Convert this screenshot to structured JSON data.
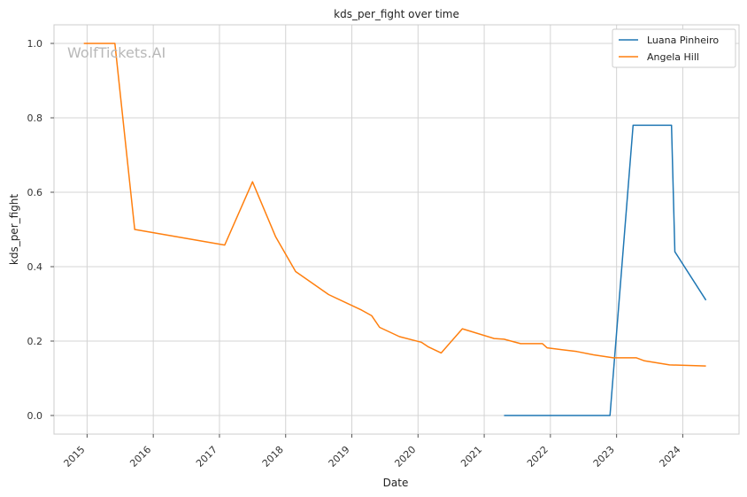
{
  "chart_data": {
    "type": "line",
    "title": "kds_per_fight over time",
    "xlabel": "Date",
    "ylabel": "kds_per_fight",
    "watermark": "WolfTickets.AI",
    "grid": true,
    "legend_position": "top-right",
    "xlim": [
      2014.5,
      2024.85
    ],
    "ylim": [
      -0.05,
      1.05
    ],
    "x_ticks": [
      {
        "value": 2015,
        "label": "2015"
      },
      {
        "value": 2016,
        "label": "2016"
      },
      {
        "value": 2017,
        "label": "2017"
      },
      {
        "value": 2018,
        "label": "2018"
      },
      {
        "value": 2019,
        "label": "2019"
      },
      {
        "value": 2020,
        "label": "2020"
      },
      {
        "value": 2021,
        "label": "2021"
      },
      {
        "value": 2022,
        "label": "2022"
      },
      {
        "value": 2023,
        "label": "2023"
      },
      {
        "value": 2024,
        "label": "2024"
      }
    ],
    "y_ticks": [
      {
        "value": 0.0,
        "label": "0.0"
      },
      {
        "value": 0.2,
        "label": "0.2"
      },
      {
        "value": 0.4,
        "label": "0.4"
      },
      {
        "value": 0.6,
        "label": "0.6"
      },
      {
        "value": 0.8,
        "label": "0.8"
      },
      {
        "value": 1.0,
        "label": "1.0"
      }
    ],
    "series": [
      {
        "name": "Luana Pinheiro",
        "color": "#1f77b4",
        "x": [
          2021.3,
          2022.9,
          2023.25,
          2023.83,
          2023.88,
          2024.35
        ],
        "y": [
          0.0,
          0.0,
          0.78,
          0.78,
          0.44,
          0.31
        ]
      },
      {
        "name": "Angela Hill",
        "color": "#ff7f0e",
        "x": [
          2014.95,
          2015.42,
          2015.72,
          2017.08,
          2017.5,
          2017.85,
          2018.15,
          2018.65,
          2019.15,
          2019.3,
          2019.42,
          2019.72,
          2020.05,
          2020.15,
          2020.35,
          2020.67,
          2021.15,
          2021.3,
          2021.55,
          2021.88,
          2021.95,
          2022.4,
          2022.65,
          2022.95,
          2023.3,
          2023.42,
          2023.8,
          2024.35
        ],
        "y": [
          1.0,
          1.0,
          0.5,
          0.458,
          0.628,
          0.48,
          0.387,
          0.325,
          0.283,
          0.268,
          0.237,
          0.212,
          0.197,
          0.185,
          0.168,
          0.233,
          0.207,
          0.205,
          0.193,
          0.193,
          0.182,
          0.172,
          0.163,
          0.155,
          0.155,
          0.147,
          0.136,
          0.133
        ]
      }
    ]
  }
}
